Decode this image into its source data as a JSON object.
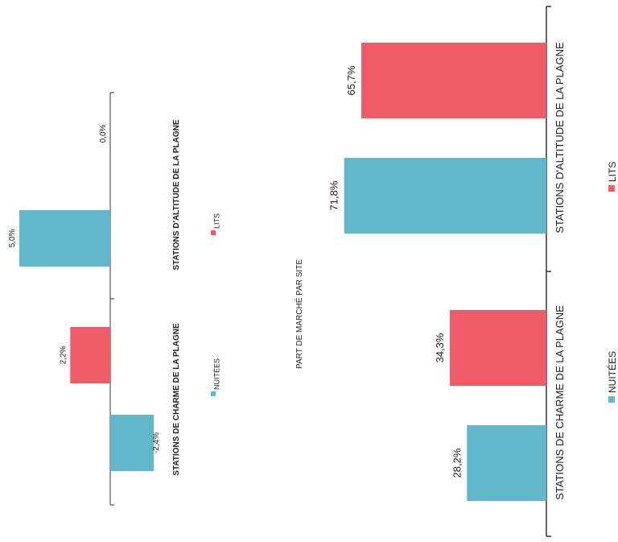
{
  "colors": {
    "nuitees": "#62b6c9",
    "lits": "#ef5b66",
    "axis": "#333333"
  },
  "left_chart": {
    "title": "",
    "series_labels": {
      "nuitees": "NUITÉES",
      "lits": "LITS"
    }
  },
  "middle_title": "PART DE MARCHÉ PAR SITE",
  "right_chart": {
    "series_labels": {
      "nuitees": "NUITÉES",
      "lits": "LITS"
    }
  },
  "chart_data": [
    {
      "type": "bar",
      "categories": [
        "STATIONS DE CHARME DE LA PLAGNE",
        "STATIONS D'ALTITUDE DE LA PLAGNE"
      ],
      "series": [
        {
          "name": "NUITÉES",
          "values": [
            -2.4,
            5.0
          ],
          "labels": [
            "-2,4%",
            "5,0%"
          ]
        },
        {
          "name": "LITS",
          "values": [
            2.2,
            0.0
          ],
          "labels": [
            "2,2%",
            "0,0%"
          ]
        }
      ],
      "unit": "%"
    },
    {
      "type": "bar",
      "title": "PART DE MARCHÉ PAR SITE",
      "categories": [
        "STATIONS DE CHARME DE LA PLAGNE",
        "STATIONS D'ALTITUDE DE LA PLAGNE"
      ],
      "series": [
        {
          "name": "NUITÉES",
          "values": [
            28.2,
            71.8
          ],
          "labels": [
            "28,2%",
            "71,8%"
          ]
        },
        {
          "name": "LITS",
          "values": [
            34.3,
            65.7
          ],
          "labels": [
            "34,3%",
            "65,7%"
          ]
        }
      ],
      "unit": "%"
    }
  ]
}
